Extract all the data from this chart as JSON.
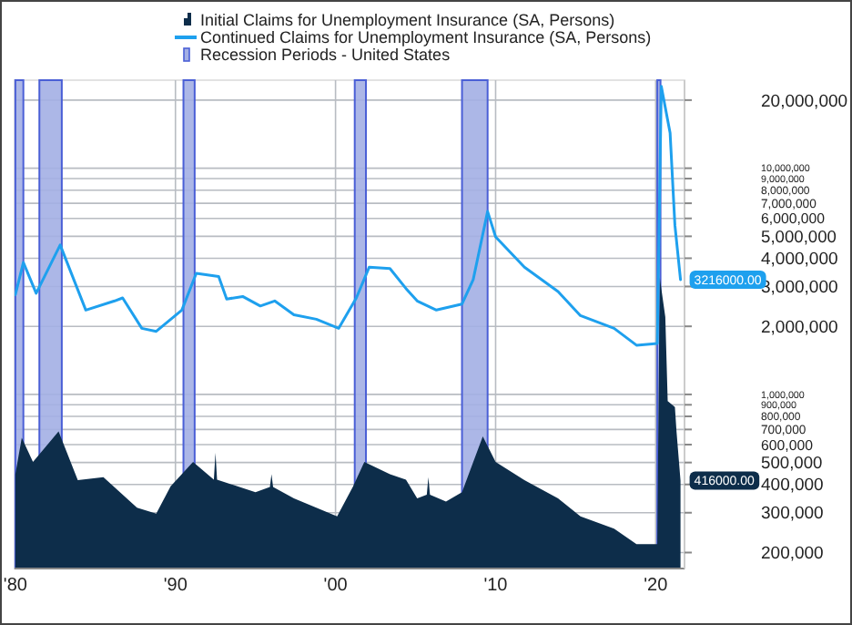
{
  "chart_data": {
    "type": "line",
    "log": "y",
    "grid": true,
    "legend": "top",
    "xlim": [
      1979.95,
      2021.8
    ],
    "ylim": [
      170000,
      24500000
    ],
    "xticks": [
      {
        "value": 1980,
        "label": "'80"
      },
      {
        "value": 1990,
        "label": "'90"
      },
      {
        "value": 2000,
        "label": "'00"
      },
      {
        "value": 2010,
        "label": "'10"
      },
      {
        "value": 2020,
        "label": "'20"
      }
    ],
    "yticks": [
      {
        "value": 200000,
        "label": "200,000"
      },
      {
        "value": 300000,
        "label": "300,000"
      },
      {
        "value": 400000,
        "label": "400,000"
      },
      {
        "value": 500000,
        "label": "500,000"
      },
      {
        "value": 600000,
        "label": "600,000"
      },
      {
        "value": 700000,
        "label": "700,000"
      },
      {
        "value": 800000,
        "label": "800,000"
      },
      {
        "value": 900000,
        "label": "900,000"
      },
      {
        "value": 1000000,
        "label": "1,000,000"
      },
      {
        "value": 2000000,
        "label": "2,000,000"
      },
      {
        "value": 3000000,
        "label": "3,000,000"
      },
      {
        "value": 4000000,
        "label": "4,000,000"
      },
      {
        "value": 5000000,
        "label": "5,000,000"
      },
      {
        "value": 6000000,
        "label": "6,000,000"
      },
      {
        "value": 7000000,
        "label": "7,000,000"
      },
      {
        "value": 8000000,
        "label": "8,000,000"
      },
      {
        "value": 9000000,
        "label": "9,000,000"
      },
      {
        "value": 10000000,
        "label": "10,000,000"
      },
      {
        "value": 20000000,
        "label": "20,000,000"
      }
    ],
    "bands": [
      {
        "axis": "x",
        "from": 1980.0,
        "to": 1980.5,
        "label": "Recession Periods - United States",
        "color": "#a3afe4"
      },
      {
        "axis": "x",
        "from": 1981.5,
        "to": 1982.9,
        "color": "#a3afe4"
      },
      {
        "axis": "x",
        "from": 1990.5,
        "to": 1991.2,
        "color": "#a3afe4"
      },
      {
        "axis": "x",
        "from": 2001.2,
        "to": 2001.9,
        "color": "#a3afe4"
      },
      {
        "axis": "x",
        "from": 2007.9,
        "to": 2009.5,
        "color": "#a3afe4"
      },
      {
        "axis": "x",
        "from": 2020.1,
        "to": 2020.3,
        "color": "#a3afe4"
      }
    ],
    "series": [
      {
        "name": "Initial Claims for Unemployment Insurance (SA, Persons)",
        "type": "area",
        "color": "#0d2d4a",
        "x": [
          1980.0,
          1980.4,
          1981.1,
          1982.7,
          1983.9,
          1985.5,
          1987.6,
          1988.8,
          1989.7,
          1991.1,
          1992.4,
          1992.5,
          1992.6,
          1995.0,
          1995.9,
          1996.0,
          1996.1,
          1997.4,
          1998.8,
          2000.1,
          2001.1,
          2001.8,
          2003.4,
          2004.4,
          2005.1,
          2005.7,
          2005.8,
          2005.9,
          2006.9,
          2007.9,
          2009.2,
          2010.0,
          2011.8,
          2013.9,
          2015.3,
          2017.4,
          2018.8,
          2020.1,
          2020.25,
          2020.6,
          2020.75,
          2021.2,
          2021.3,
          2021.55
        ],
        "values": [
          444000,
          644000,
          503000,
          686000,
          418000,
          431000,
          316000,
          297000,
          393000,
          503000,
          420000,
          552000,
          420000,
          370000,
          390000,
          444000,
          390000,
          347000,
          316000,
          289000,
          393000,
          503000,
          444000,
          420000,
          347000,
          360000,
          431000,
          360000,
          336000,
          370000,
          652000,
          503000,
          418000,
          347000,
          289000,
          255000,
          218000,
          218000,
          3300000,
          2200000,
          935000,
          880000,
          686000,
          416000
        ]
      },
      {
        "name": "Continued Claims for Unemployment Insurance (SA, Persons)",
        "color": "#1ea0ee",
        "x": [
          1980.0,
          1980.5,
          1981.3,
          1982.8,
          1984.4,
          1986.2,
          1986.7,
          1987.9,
          1988.8,
          1990.4,
          1991.3,
          1992.7,
          1993.2,
          1994.2,
          1995.3,
          1996.2,
          1997.4,
          1998.8,
          2000.2,
          2001.3,
          2002.1,
          2003.4,
          2004.4,
          2005.1,
          2006.3,
          2007.9,
          2008.6,
          2009.5,
          2010.0,
          2011.8,
          2013.9,
          2015.3,
          2017.4,
          2018.8,
          2020.1,
          2020.35,
          2020.9,
          2021.2,
          2021.55
        ],
        "values": [
          2760000,
          3830000,
          2800000,
          4580000,
          2360000,
          2590000,
          2670000,
          1960000,
          1900000,
          2360000,
          3430000,
          3320000,
          2640000,
          2710000,
          2460000,
          2590000,
          2250000,
          2150000,
          1960000,
          2670000,
          3650000,
          3600000,
          2940000,
          2590000,
          2360000,
          2510000,
          3220000,
          6440000,
          4970000,
          3650000,
          2850000,
          2230000,
          1960000,
          1650000,
          1680000,
          23000000,
          14300000,
          5600000,
          3216000
        ]
      }
    ],
    "annotations": [
      {
        "text": "3216000.00",
        "x": 2021.55,
        "y": 3216000
      },
      {
        "text": "416000.00",
        "x": 2021.55,
        "y": 416000
      }
    ]
  }
}
